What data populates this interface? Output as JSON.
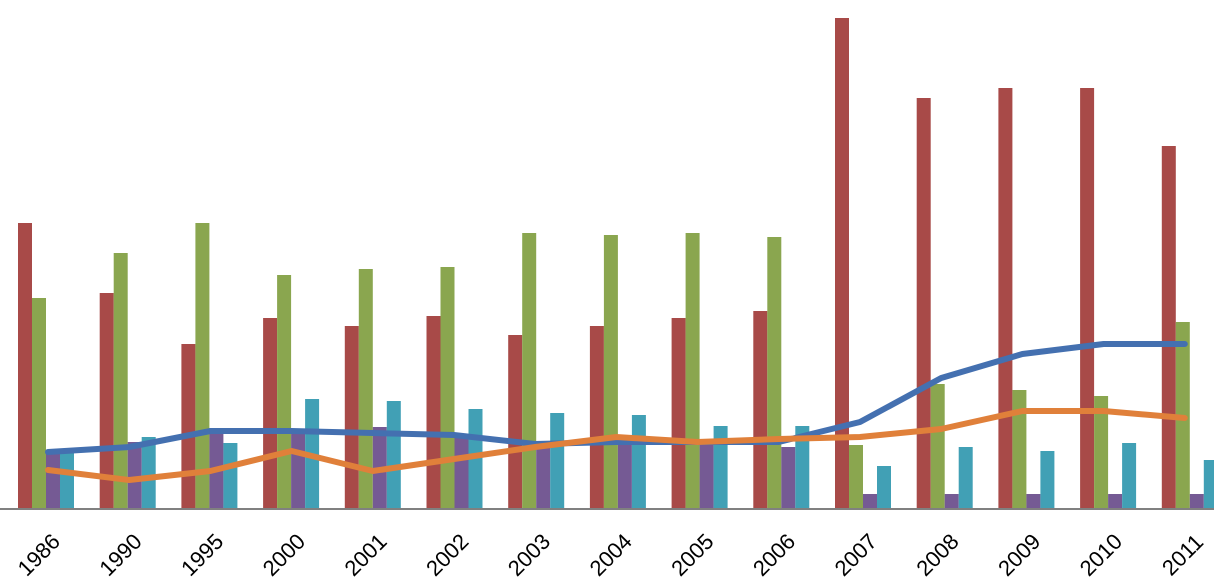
{
  "chart_data": {
    "type": "bar",
    "title": "",
    "xlabel": "",
    "ylabel": "",
    "categories": [
      "1986",
      "1990",
      "1995",
      "2000",
      "2001",
      "2002",
      "2003",
      "2004",
      "2005",
      "2006",
      "2007",
      "2008",
      "2009",
      "2010",
      "2011"
    ],
    "ylim": [
      0,
      49
    ],
    "grid": false,
    "legend": "none",
    "series": [
      {
        "type": "bar",
        "color": "#a84a48",
        "values": [
          28.5,
          21.5,
          16.4,
          19.0,
          18.2,
          19.2,
          17.3,
          18.2,
          19.0,
          19.7,
          49.0,
          41.0,
          42.0,
          42.0,
          36.2
        ]
      },
      {
        "type": "bar",
        "color": "#8aa64f",
        "values": [
          21.0,
          25.5,
          28.5,
          23.3,
          23.9,
          24.1,
          27.5,
          27.3,
          27.5,
          27.1,
          6.3,
          12.4,
          11.8,
          11.2,
          18.6
        ]
      },
      {
        "type": "bar",
        "color": "#755a94",
        "values": [
          5.5,
          6.6,
          7.7,
          7.7,
          8.1,
          7.3,
          6.2,
          6.6,
          6.4,
          6.1,
          1.4,
          1.4,
          1.4,
          1.4,
          1.4
        ]
      },
      {
        "type": "bar",
        "color": "#41a0b5",
        "values": [
          5.5,
          7.1,
          6.5,
          10.9,
          10.7,
          9.9,
          9.5,
          9.3,
          8.2,
          8.2,
          4.2,
          6.1,
          5.7,
          6.5,
          4.8
        ]
      },
      {
        "type": "line",
        "color": "#4470b0",
        "values": [
          5.6,
          6.1,
          7.7,
          7.7,
          7.5,
          7.3,
          6.4,
          6.6,
          6.6,
          6.6,
          8.6,
          13.0,
          15.4,
          16.4,
          16.4
        ]
      },
      {
        "type": "line",
        "color": "#e0803a",
        "values": [
          3.8,
          2.8,
          3.7,
          5.7,
          3.7,
          4.9,
          6.1,
          7.1,
          6.6,
          6.9,
          7.1,
          7.9,
          9.7,
          9.7,
          9.0
        ]
      }
    ]
  }
}
